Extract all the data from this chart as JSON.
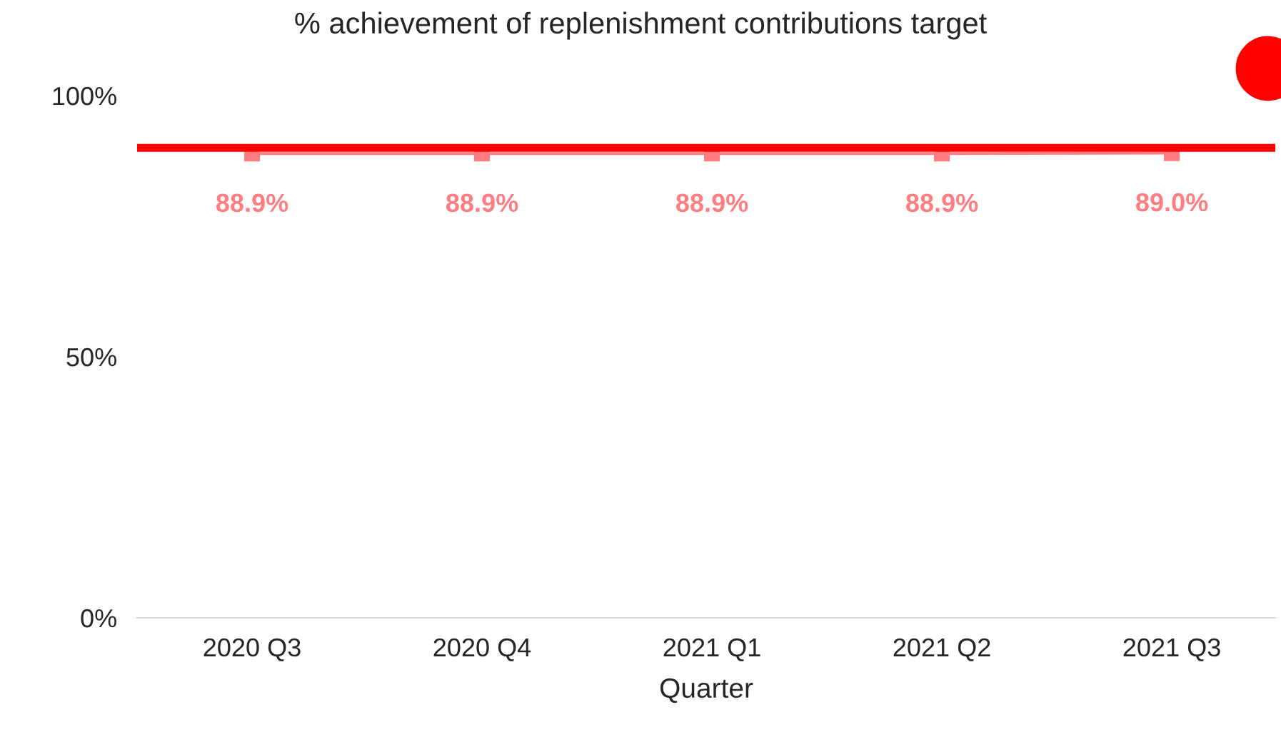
{
  "chart_data": {
    "type": "line",
    "title": "% achievement of replenishment contributions target",
    "xlabel": "Quarter",
    "categories": [
      "2020 Q3",
      "2020 Q4",
      "2021 Q1",
      "2021 Q2",
      "2021 Q3"
    ],
    "series": [
      {
        "color": "#ff7c80",
        "values": [
          88.9,
          88.9,
          88.9,
          88.9,
          89.0
        ],
        "value_labels": [
          "88.9%",
          "88.9%",
          "88.9%",
          "88.9%",
          "89.0%"
        ]
      }
    ],
    "marker": "square",
    "ylim": [
      0,
      100
    ],
    "yticks": [
      {
        "value": 0,
        "label": "0%"
      },
      {
        "value": 50,
        "label": "50%"
      },
      {
        "value": 100,
        "label": "100%"
      }
    ],
    "ref_lines": [
      {
        "axis": "y",
        "value": 90,
        "color": "#ff0000"
      }
    ],
    "grid": false,
    "legend": false
  }
}
